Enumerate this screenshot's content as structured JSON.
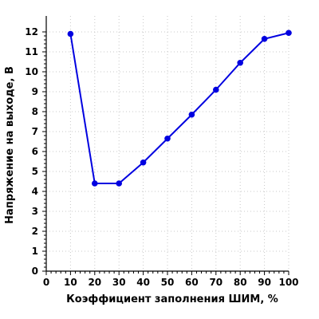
{
  "chart_data": {
    "type": "line",
    "xlabel": "Коэффициент заполнения ШИМ, %",
    "ylabel": "Напряжение на выходе, В",
    "xlim": [
      0,
      100
    ],
    "ylim": [
      0,
      12.8
    ],
    "xticks": [
      0,
      10,
      20,
      30,
      40,
      50,
      60,
      70,
      80,
      90,
      100
    ],
    "yticks": [
      0,
      1,
      2,
      3,
      4,
      5,
      6,
      7,
      8,
      9,
      10,
      11,
      12
    ],
    "grid": true,
    "color": "#0000e0",
    "series": [
      {
        "x": [
          10,
          20,
          30,
          40,
          50,
          60,
          70,
          80,
          90,
          100
        ],
        "y": [
          11.9,
          4.4,
          4.4,
          5.45,
          6.65,
          7.85,
          9.1,
          10.45,
          11.65,
          11.95
        ]
      }
    ]
  }
}
